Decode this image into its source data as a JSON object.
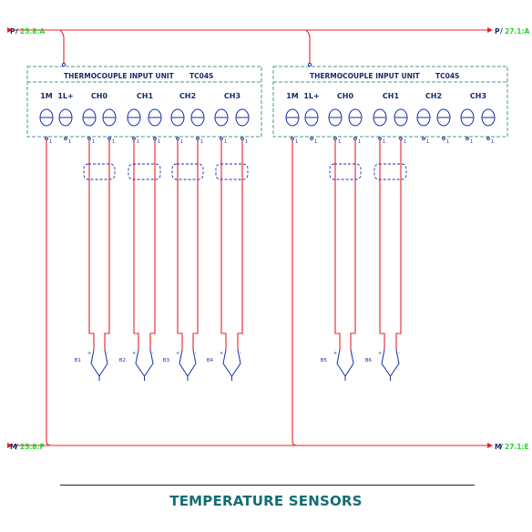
{
  "title": "TEMPERATURE SENSORS",
  "refs": {
    "p_left_letter": "P",
    "p_left_ref": "25.8:A",
    "p_right_letter": "P",
    "p_right_ref": "27.1:A",
    "m_left_letter": "M",
    "m_left_ref": "25.8:F",
    "m_right_letter": "M",
    "m_right_ref": "27.1:E"
  },
  "units": [
    {
      "name": "THERMOCOUPLE INPUT UNIT",
      "model": "TC04S",
      "terminals": [
        "1M",
        "1L+",
        "CH0",
        "CH1",
        "CH2",
        "CH3"
      ],
      "sensors": [
        "B1",
        "B2",
        "B3",
        "B4"
      ]
    },
    {
      "name": "THERMOCOUPLE INPUT UNIT",
      "model": "TC04S",
      "terminals": [
        "1M",
        "1L+",
        "CH0",
        "CH1",
        "CH2",
        "CH3"
      ],
      "sensors": [
        "B5",
        "B6"
      ]
    }
  ],
  "colors": {
    "wire": "#e8202a",
    "component": "#1a2fa8",
    "text": "#1a2b6b",
    "reference": "#2fd02f",
    "title": "#136e72",
    "unit_box": "#4a9a8c"
  }
}
